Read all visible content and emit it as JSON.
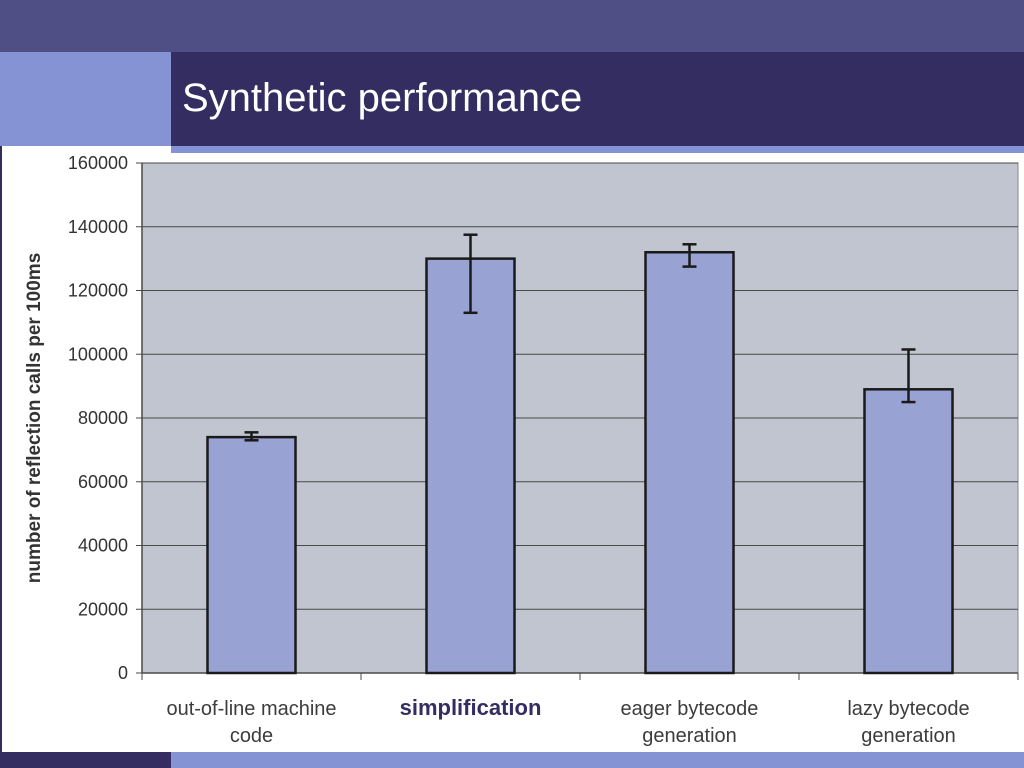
{
  "slide": {
    "title": "Synthetic performance"
  },
  "colors": {
    "top_band": "#4f4e85",
    "title_bar": "#342d62",
    "accent_light": "#8592d4",
    "plot_area": "#c0c5d0",
    "bar_fill": "#99a3d3",
    "highlight_label": "#342d62"
  },
  "chart_data": {
    "type": "bar",
    "ylabel": "number of reflection calls per 100ms",
    "ylim": [
      0,
      160000
    ],
    "yticks": [
      "0",
      "20000",
      "40000",
      "60000",
      "80000",
      "100000",
      "120000",
      "140000",
      "160000"
    ],
    "grid": true,
    "categories": [
      "out-of-line machine code",
      "simplification",
      "eager bytecode generation",
      "lazy bytecode generation"
    ],
    "highlighted_category": "simplification",
    "values": [
      74000,
      130000,
      132000,
      89000
    ],
    "error_low": [
      73000,
      113000,
      127500,
      85000
    ],
    "error_high": [
      75500,
      137500,
      134500,
      101500
    ]
  }
}
